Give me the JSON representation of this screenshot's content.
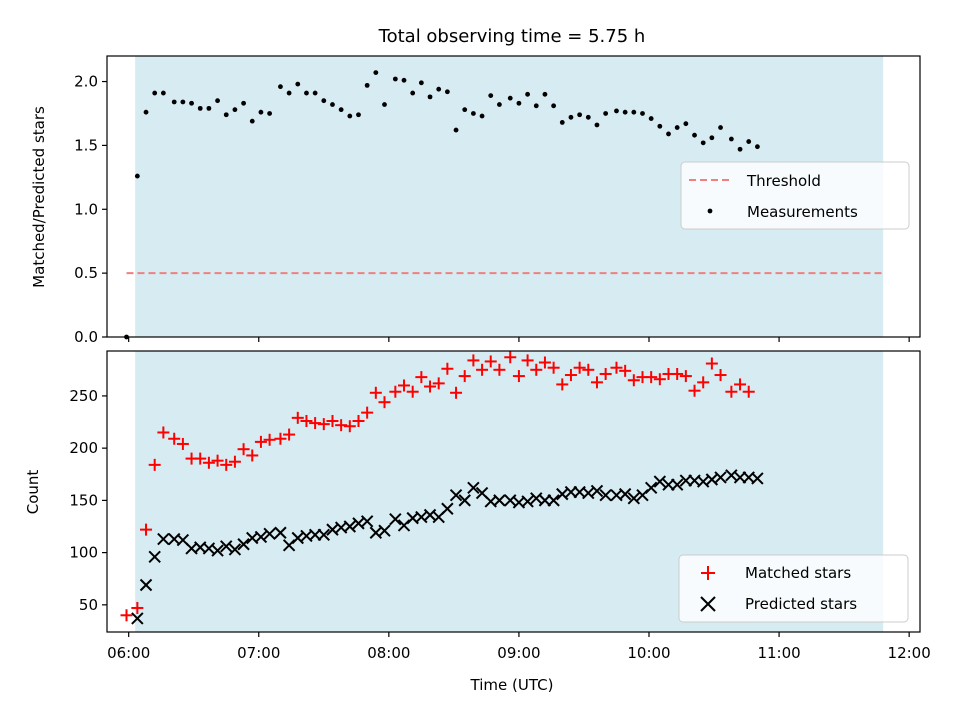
{
  "chart_data": {
    "title": "Total observing time = 5.75 h",
    "xlabel": "Time (UTC)",
    "x_ticks": [
      "06:00",
      "07:00",
      "08:00",
      "09:00",
      "10:00",
      "11:00",
      "12:00"
    ],
    "xlim": [
      "05:50",
      "12:05"
    ],
    "shaded_interval": [
      "06:03",
      "11:48"
    ],
    "shade_color": "#add8e6",
    "panels": [
      {
        "type": "scatter",
        "ylabel": "Matched/Predicted stars",
        "ylim": [
          0,
          2.2
        ],
        "y_ticks": [
          "0.0",
          "0.5",
          "1.0",
          "1.5",
          "2.0"
        ],
        "legend": {
          "placement": "center-right",
          "entries": [
            "Threshold",
            "Measurements"
          ]
        },
        "threshold": {
          "name": "Threshold",
          "y": 0.5,
          "color": "#f08080",
          "x_range": [
            "05:59",
            "11:48"
          ]
        },
        "series": [
          {
            "name": "Measurements",
            "marker": "dot",
            "color": "#000000",
            "points": [
              [
                "05:59",
                0.0
              ],
              [
                "06:04",
                1.26
              ],
              [
                "06:08",
                1.76
              ],
              [
                "06:12",
                1.91
              ],
              [
                "06:16",
                1.91
              ],
              [
                "06:21",
                1.84
              ],
              [
                "06:25",
                1.84
              ],
              [
                "06:29",
                1.83
              ],
              [
                "06:33",
                1.79
              ],
              [
                "06:37",
                1.79
              ],
              [
                "06:41",
                1.85
              ],
              [
                "06:45",
                1.74
              ],
              [
                "06:49",
                1.78
              ],
              [
                "06:53",
                1.83
              ],
              [
                "06:57",
                1.69
              ],
              [
                "07:01",
                1.76
              ],
              [
                "07:05",
                1.75
              ],
              [
                "07:10",
                1.96
              ],
              [
                "07:14",
                1.91
              ],
              [
                "07:18",
                1.98
              ],
              [
                "07:22",
                1.91
              ],
              [
                "07:26",
                1.91
              ],
              [
                "07:30",
                1.85
              ],
              [
                "07:34",
                1.82
              ],
              [
                "07:38",
                1.78
              ],
              [
                "07:42",
                1.73
              ],
              [
                "07:46",
                1.74
              ],
              [
                "07:50",
                1.97
              ],
              [
                "07:54",
                2.07
              ],
              [
                "07:58",
                1.82
              ],
              [
                "08:03",
                2.02
              ],
              [
                "08:07",
                2.01
              ],
              [
                "08:11",
                1.91
              ],
              [
                "08:15",
                1.99
              ],
              [
                "08:19",
                1.88
              ],
              [
                "08:23",
                1.94
              ],
              [
                "08:27",
                1.92
              ],
              [
                "08:31",
                1.62
              ],
              [
                "08:35",
                1.78
              ],
              [
                "08:39",
                1.75
              ],
              [
                "08:43",
                1.73
              ],
              [
                "08:47",
                1.89
              ],
              [
                "08:51",
                1.82
              ],
              [
                "08:56",
                1.87
              ],
              [
                "09:00",
                1.83
              ],
              [
                "09:04",
                1.9
              ],
              [
                "09:08",
                1.81
              ],
              [
                "09:12",
                1.9
              ],
              [
                "09:16",
                1.81
              ],
              [
                "09:20",
                1.68
              ],
              [
                "09:24",
                1.72
              ],
              [
                "09:28",
                1.74
              ],
              [
                "09:32",
                1.72
              ],
              [
                "09:36",
                1.66
              ],
              [
                "09:40",
                1.75
              ],
              [
                "09:45",
                1.77
              ],
              [
                "09:49",
                1.76
              ],
              [
                "09:53",
                1.76
              ],
              [
                "09:57",
                1.75
              ],
              [
                "10:01",
                1.71
              ],
              [
                "10:05",
                1.65
              ],
              [
                "10:09",
                1.59
              ],
              [
                "10:13",
                1.64
              ],
              [
                "10:17",
                1.67
              ],
              [
                "10:21",
                1.58
              ],
              [
                "10:25",
                1.52
              ],
              [
                "10:29",
                1.56
              ],
              [
                "10:33",
                1.64
              ],
              [
                "10:38",
                1.55
              ],
              [
                "10:42",
                1.47
              ],
              [
                "10:46",
                1.53
              ],
              [
                "10:50",
                1.49
              ]
            ]
          }
        ]
      },
      {
        "type": "scatter",
        "ylabel": "Count",
        "ylim": [
          24,
          293
        ],
        "y_ticks": [
          "50",
          "100",
          "150",
          "200",
          "250"
        ],
        "legend": {
          "placement": "lower-right",
          "entries": [
            "Matched stars",
            "Predicted stars"
          ]
        },
        "series": [
          {
            "name": "Matched stars",
            "marker": "plus",
            "color": "#ff0000",
            "points": [
              [
                "05:59",
                40
              ],
              [
                "06:04",
                47
              ],
              [
                "06:08",
                122
              ],
              [
                "06:12",
                184
              ],
              [
                "06:16",
                215
              ],
              [
                "06:21",
                209
              ],
              [
                "06:25",
                204
              ],
              [
                "06:29",
                190
              ],
              [
                "06:33",
                190
              ],
              [
                "06:37",
                186
              ],
              [
                "06:41",
                188
              ],
              [
                "06:45",
                184
              ],
              [
                "06:49",
                187
              ],
              [
                "06:53",
                199
              ],
              [
                "06:57",
                193
              ],
              [
                "07:01",
                206
              ],
              [
                "07:05",
                208
              ],
              [
                "07:10",
                209
              ],
              [
                "07:14",
                213
              ],
              [
                "07:18",
                229
              ],
              [
                "07:22",
                226
              ],
              [
                "07:26",
                224
              ],
              [
                "07:30",
                223
              ],
              [
                "07:34",
                226
              ],
              [
                "07:38",
                222
              ],
              [
                "07:42",
                221
              ],
              [
                "07:46",
                226
              ],
              [
                "07:50",
                234
              ],
              [
                "07:54",
                253
              ],
              [
                "07:58",
                244
              ],
              [
                "08:03",
                254
              ],
              [
                "08:07",
                260
              ],
              [
                "08:11",
                254
              ],
              [
                "08:15",
                268
              ],
              [
                "08:19",
                259
              ],
              [
                "08:23",
                262
              ],
              [
                "08:27",
                276
              ],
              [
                "08:31",
                253
              ],
              [
                "08:35",
                269
              ],
              [
                "08:39",
                284
              ],
              [
                "08:43",
                275
              ],
              [
                "08:47",
                283
              ],
              [
                "08:51",
                275
              ],
              [
                "08:56",
                287
              ],
              [
                "09:00",
                269
              ],
              [
                "09:04",
                284
              ],
              [
                "09:08",
                275
              ],
              [
                "09:12",
                282
              ],
              [
                "09:16",
                277
              ],
              [
                "09:20",
                261
              ],
              [
                "09:24",
                270
              ],
              [
                "09:28",
                277
              ],
              [
                "09:32",
                275
              ],
              [
                "09:36",
                263
              ],
              [
                "09:40",
                271
              ],
              [
                "09:45",
                277
              ],
              [
                "09:49",
                274
              ],
              [
                "09:53",
                265
              ],
              [
                "09:57",
                268
              ],
              [
                "10:01",
                268
              ],
              [
                "10:05",
                266
              ],
              [
                "10:09",
                271
              ],
              [
                "10:13",
                271
              ],
              [
                "10:17",
                269
              ],
              [
                "10:21",
                255
              ],
              [
                "10:25",
                263
              ],
              [
                "10:29",
                281
              ],
              [
                "10:33",
                270
              ],
              [
                "10:38",
                254
              ],
              [
                "10:42",
                261
              ],
              [
                "10:46",
                254
              ]
            ]
          },
          {
            "name": "Predicted stars",
            "marker": "x",
            "color": "#000000",
            "points": [
              [
                "06:04",
                37
              ],
              [
                "06:08",
                69
              ],
              [
                "06:12",
                96
              ],
              [
                "06:16",
                113
              ],
              [
                "06:21",
                113
              ],
              [
                "06:25",
                112
              ],
              [
                "06:29",
                104
              ],
              [
                "06:33",
                105
              ],
              [
                "06:37",
                104
              ],
              [
                "06:41",
                102
              ],
              [
                "06:45",
                106
              ],
              [
                "06:49",
                103
              ],
              [
                "06:53",
                108
              ],
              [
                "06:57",
                114
              ],
              [
                "07:01",
                115
              ],
              [
                "07:05",
                118
              ],
              [
                "07:10",
                119
              ],
              [
                "07:14",
                107
              ],
              [
                "07:18",
                114
              ],
              [
                "07:22",
                116
              ],
              [
                "07:26",
                117
              ],
              [
                "07:30",
                117
              ],
              [
                "07:34",
                122
              ],
              [
                "07:38",
                124
              ],
              [
                "07:42",
                125
              ],
              [
                "07:46",
                128
              ],
              [
                "07:50",
                130
              ],
              [
                "07:54",
                119
              ],
              [
                "07:58",
                121
              ],
              [
                "08:03",
                132
              ],
              [
                "08:07",
                126
              ],
              [
                "08:11",
                133
              ],
              [
                "08:15",
                134
              ],
              [
                "08:19",
                136
              ],
              [
                "08:23",
                134
              ],
              [
                "08:27",
                142
              ],
              [
                "08:31",
                155
              ],
              [
                "08:35",
                150
              ],
              [
                "08:39",
                162
              ],
              [
                "08:43",
                157
              ],
              [
                "08:47",
                149
              ],
              [
                "08:51",
                150
              ],
              [
                "08:56",
                150
              ],
              [
                "09:00",
                148
              ],
              [
                "09:04",
                149
              ],
              [
                "09:08",
                152
              ],
              [
                "09:12",
                150
              ],
              [
                "09:16",
                150
              ],
              [
                "09:20",
                156
              ],
              [
                "09:24",
                158
              ],
              [
                "09:28",
                158
              ],
              [
                "09:32",
                157
              ],
              [
                "09:36",
                159
              ],
              [
                "09:40",
                155
              ],
              [
                "09:45",
                155
              ],
              [
                "09:49",
                156
              ],
              [
                "09:53",
                152
              ],
              [
                "09:57",
                155
              ],
              [
                "10:01",
                162
              ],
              [
                "10:05",
                168
              ],
              [
                "10:09",
                165
              ],
              [
                "10:13",
                165
              ],
              [
                "10:17",
                169
              ],
              [
                "10:21",
                169
              ],
              [
                "10:25",
                168
              ],
              [
                "10:29",
                170
              ],
              [
                "10:33",
                172
              ],
              [
                "10:38",
                174
              ],
              [
                "10:42",
                172
              ],
              [
                "10:46",
                172
              ],
              [
                "10:50",
                171
              ]
            ]
          }
        ]
      }
    ]
  }
}
